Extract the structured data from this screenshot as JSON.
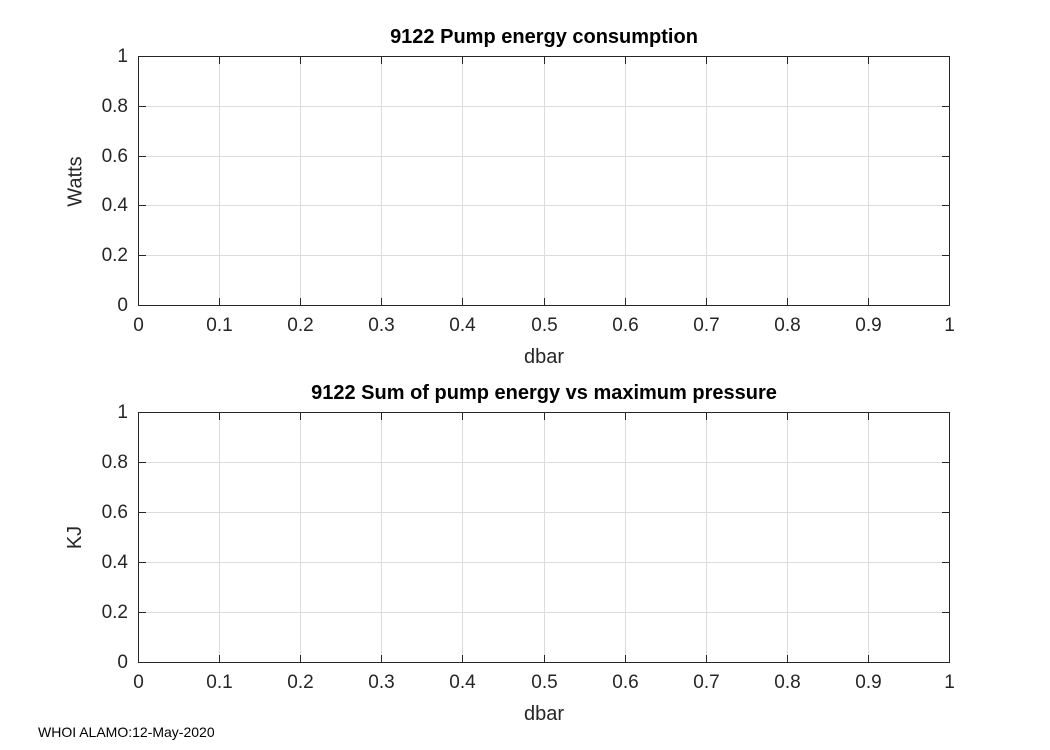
{
  "colors": {
    "axis": "#262626",
    "grid": "#DCDCDC",
    "title": "#000000",
    "footer": "#000000",
    "background": "#FFFFFF"
  },
  "footer": {
    "text": "WHOI ALAMO:12-May-2020"
  },
  "chart_data": [
    {
      "type": "line",
      "title": "9122 Pump energy consumption",
      "xlabel": "dbar",
      "ylabel": "Watts",
      "xlim": [
        0,
        1
      ],
      "ylim": [
        0,
        1
      ],
      "xticks": [
        0,
        0.1,
        0.2,
        0.3,
        0.4,
        0.5,
        0.6,
        0.7,
        0.8,
        0.9,
        1
      ],
      "xtick_labels": [
        "0",
        "0.1",
        "0.2",
        "0.3",
        "0.4",
        "0.5",
        "0.6",
        "0.7",
        "0.8",
        "0.9",
        "1"
      ],
      "yticks": [
        0,
        0.2,
        0.4,
        0.6,
        0.8,
        1
      ],
      "ytick_labels": [
        "0",
        "0.2",
        "0.4",
        "0.6",
        "0.8",
        "1"
      ],
      "grid": true,
      "box": true,
      "legend": null,
      "series": []
    },
    {
      "type": "line",
      "title": "9122 Sum of pump energy vs maximum pressure",
      "xlabel": "dbar",
      "ylabel": "KJ",
      "xlim": [
        0,
        1
      ],
      "ylim": [
        0,
        1
      ],
      "xticks": [
        0,
        0.1,
        0.2,
        0.3,
        0.4,
        0.5,
        0.6,
        0.7,
        0.8,
        0.9,
        1
      ],
      "xtick_labels": [
        "0",
        "0.1",
        "0.2",
        "0.3",
        "0.4",
        "0.5",
        "0.6",
        "0.7",
        "0.8",
        "0.9",
        "1"
      ],
      "yticks": [
        0,
        0.2,
        0.4,
        0.6,
        0.8,
        1
      ],
      "ytick_labels": [
        "0",
        "0.2",
        "0.4",
        "0.6",
        "0.8",
        "1"
      ],
      "grid": true,
      "box": true,
      "legend": null,
      "series": []
    }
  ]
}
